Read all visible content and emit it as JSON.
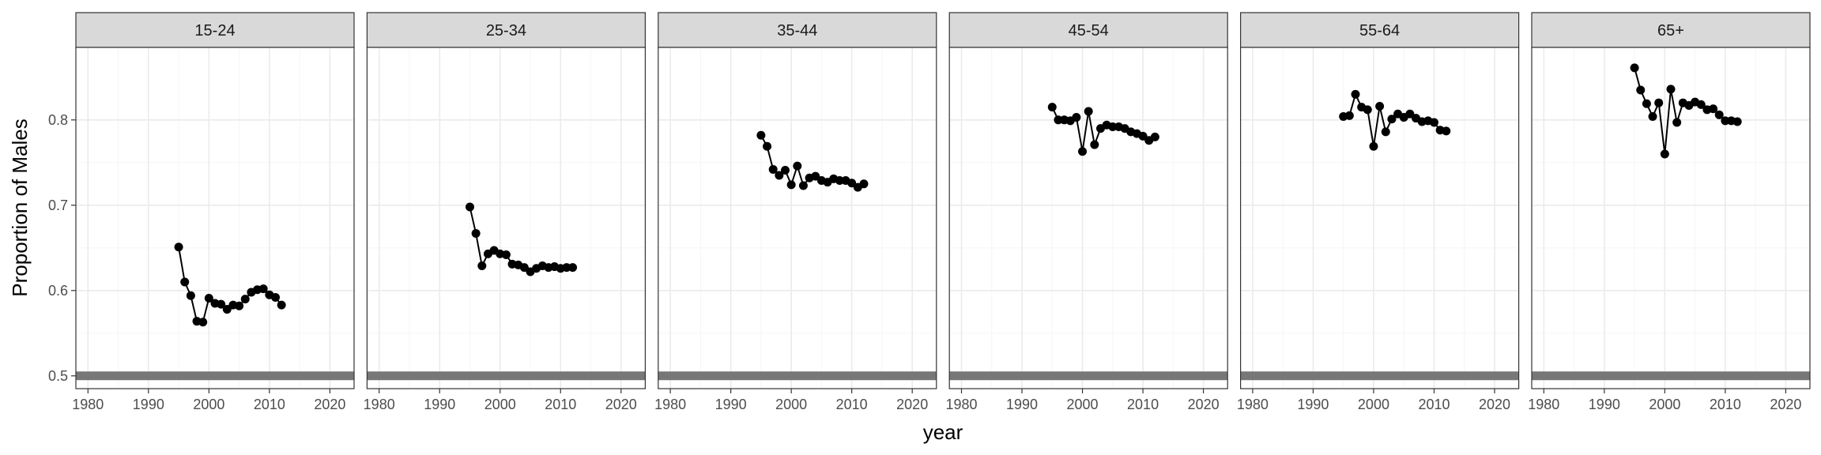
{
  "chart_data": {
    "type": "line",
    "facet_by": "age_group",
    "xlabel": "year",
    "ylabel": "Proportion of Males",
    "xlim": [
      1978,
      2024
    ],
    "ylim": [
      0.485,
      0.885
    ],
    "x_ticks": [
      1980,
      1990,
      2000,
      2010,
      2020
    ],
    "y_ticks": [
      0.5,
      0.6,
      0.7,
      0.8
    ],
    "y_tick_labels": [
      "0.5",
      "0.6",
      "0.7",
      "0.8"
    ],
    "reference_line": 0.5,
    "colors": {
      "strip_bg": "#d9d9d9",
      "grid_major": "#ebebeb",
      "grid_minor": "#f5f5f5",
      "reference": "#777777",
      "series": "#000000",
      "panel_border": "#333333"
    },
    "x": [
      1995,
      1996,
      1997,
      1998,
      1999,
      2000,
      2001,
      2002,
      2003,
      2004,
      2005,
      2006,
      2007,
      2008,
      2009,
      2010,
      2011,
      2012
    ],
    "panels": [
      {
        "label": "15-24",
        "values": [
          0.651,
          0.61,
          0.594,
          0.564,
          0.563,
          0.591,
          0.585,
          0.584,
          0.578,
          0.583,
          0.582,
          0.59,
          0.598,
          0.601,
          0.602,
          0.595,
          0.592,
          0.583
        ]
      },
      {
        "label": "25-34",
        "values": [
          0.698,
          0.667,
          0.629,
          0.643,
          0.647,
          0.643,
          0.642,
          0.631,
          0.63,
          0.627,
          0.622,
          0.626,
          0.629,
          0.627,
          0.628,
          0.626,
          0.627,
          0.627
        ]
      },
      {
        "label": "35-44",
        "values": [
          0.782,
          0.769,
          0.742,
          0.735,
          0.741,
          0.724,
          0.746,
          0.723,
          0.732,
          0.734,
          0.729,
          0.727,
          0.731,
          0.729,
          0.729,
          0.726,
          0.721,
          0.725
        ]
      },
      {
        "label": "45-54",
        "values": [
          0.815,
          0.8,
          0.8,
          0.799,
          0.803,
          0.763,
          0.81,
          0.771,
          0.79,
          0.794,
          0.792,
          0.792,
          0.79,
          0.786,
          0.784,
          0.781,
          0.776,
          0.78
        ]
      },
      {
        "label": "55-64",
        "values": [
          0.804,
          0.805,
          0.83,
          0.815,
          0.812,
          0.769,
          0.816,
          0.786,
          0.801,
          0.807,
          0.803,
          0.807,
          0.802,
          0.798,
          0.799,
          0.797,
          0.788,
          0.787
        ]
      },
      {
        "label": "65+",
        "values": [
          0.861,
          0.835,
          0.819,
          0.804,
          0.82,
          0.76,
          0.836,
          0.797,
          0.82,
          0.817,
          0.821,
          0.818,
          0.812,
          0.813,
          0.806,
          0.799,
          0.799,
          0.798
        ]
      }
    ]
  }
}
